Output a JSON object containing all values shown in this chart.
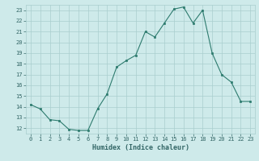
{
  "x": [
    0,
    1,
    2,
    3,
    4,
    5,
    6,
    7,
    8,
    9,
    10,
    11,
    12,
    13,
    14,
    15,
    16,
    17,
    18,
    19,
    20,
    21,
    22,
    23
  ],
  "y": [
    14.2,
    13.8,
    12.8,
    12.7,
    11.9,
    11.8,
    11.8,
    13.8,
    15.2,
    17.7,
    18.3,
    18.8,
    21.0,
    20.5,
    21.8,
    23.1,
    23.3,
    21.8,
    23.0,
    19.0,
    17.0,
    16.3,
    14.5,
    14.5
  ],
  "xlabel": "Humidex (Indice chaleur)",
  "xlim": [
    -0.5,
    23.5
  ],
  "ylim": [
    11.5,
    23.5
  ],
  "yticks": [
    12,
    13,
    14,
    15,
    16,
    17,
    18,
    19,
    20,
    21,
    22,
    23
  ],
  "xticks": [
    0,
    1,
    2,
    3,
    4,
    5,
    6,
    7,
    8,
    9,
    10,
    11,
    12,
    13,
    14,
    15,
    16,
    17,
    18,
    19,
    20,
    21,
    22,
    23
  ],
  "line_color": "#2d7b6e",
  "bg_color": "#ceeaea",
  "grid_color": "#aacece",
  "tick_label_color": "#336666",
  "xlabel_color": "#336666"
}
